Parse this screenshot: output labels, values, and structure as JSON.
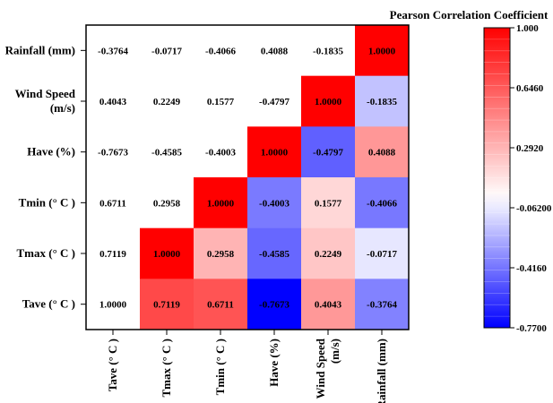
{
  "chart_data": {
    "type": "heatmap",
    "title": "Pearson Correlation Coefficient",
    "row_labels": [
      [
        "Rainfall (mm)"
      ],
      [
        "Wind Speed",
        "(m/s)"
      ],
      [
        "Have (%)"
      ],
      [
        "Tmin  (° C )"
      ],
      [
        "Tmax (° C )"
      ],
      [
        "Tave (° C )"
      ]
    ],
    "column_labels": [
      [
        "Tave (° C )"
      ],
      [
        "Tmax (° C )"
      ],
      [
        "Tmin  (° C )"
      ],
      [
        "Have (%)"
      ],
      [
        "Wind Speed",
        "(m/s)"
      ],
      [
        "Rainfall (mm)"
      ]
    ],
    "values": [
      [
        -0.3764,
        -0.0717,
        -0.4066,
        0.4088,
        -0.1835,
        1.0
      ],
      [
        0.4043,
        0.2249,
        0.1577,
        -0.4797,
        1.0,
        -0.1835
      ],
      [
        -0.7673,
        -0.4585,
        -0.4003,
        1.0,
        -0.4797,
        0.4088
      ],
      [
        0.6711,
        0.2958,
        1.0,
        -0.4003,
        0.1577,
        -0.4066
      ],
      [
        0.7119,
        1.0,
        0.2958,
        -0.4585,
        0.2249,
        -0.0717
      ],
      [
        1.0,
        0.7119,
        0.6711,
        -0.7673,
        0.4043,
        -0.3764
      ]
    ],
    "colored": [
      [
        false,
        false,
        false,
        false,
        false,
        true
      ],
      [
        false,
        false,
        false,
        false,
        true,
        true
      ],
      [
        false,
        false,
        false,
        true,
        true,
        true
      ],
      [
        false,
        false,
        true,
        true,
        true,
        true
      ],
      [
        false,
        true,
        true,
        true,
        true,
        true
      ],
      [
        false,
        true,
        true,
        true,
        true,
        true
      ]
    ],
    "colorbar": {
      "min": -0.77,
      "max": 1.0,
      "ticks": [
        "1.000",
        "0.6460",
        "0.2920",
        "-0.06200",
        "-0.4160",
        "-0.7700"
      ],
      "tick_values": [
        1.0,
        0.646,
        0.292,
        -0.062,
        -0.416,
        -0.77
      ],
      "low_color": "#0000ff",
      "mid_color": "#ffffff",
      "high_color": "#ff0000"
    }
  }
}
